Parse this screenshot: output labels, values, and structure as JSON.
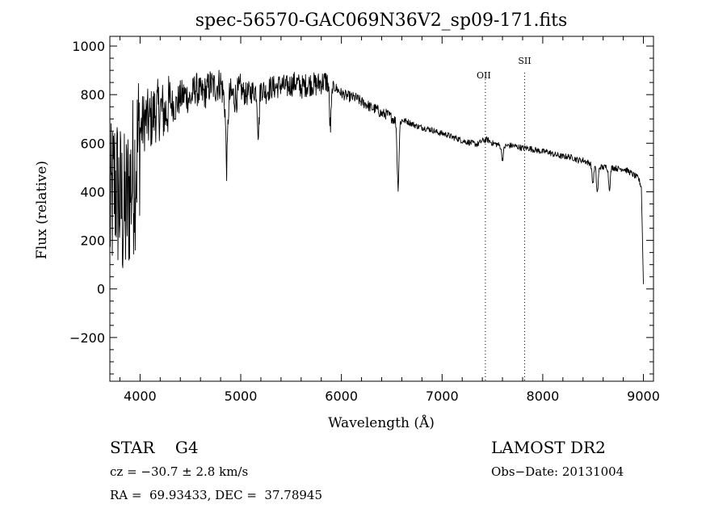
{
  "chart_data": {
    "type": "line",
    "title": "spec-56570-GAC069N36V2_sp09-171.fits",
    "xlabel": "Wavelength (Å)",
    "ylabel": "Flux (relative)",
    "xlim": [
      3700,
      9100
    ],
    "ylim": [
      -380,
      1040
    ],
    "xticks": [
      4000,
      5000,
      6000,
      7000,
      8000,
      9000
    ],
    "yticks": [
      -200,
      0,
      200,
      400,
      600,
      800,
      1000
    ],
    "xtick_labels": [
      "4000",
      "5000",
      "6000",
      "7000",
      "8000",
      "9000"
    ],
    "ytick_labels": [
      "−200",
      "0",
      "200",
      "400",
      "600",
      "800",
      "1000"
    ],
    "x_minor_step": 200,
    "y_minor_step": 50,
    "grid": false,
    "series": [
      {
        "x": [
          3700,
          3750,
          3800,
          3850,
          3900,
          3950,
          4000,
          4050,
          4100,
          4150,
          4200,
          4250,
          4300,
          4350,
          4400,
          4450,
          4500,
          4550,
          4600,
          4650,
          4700,
          4750,
          4800,
          4850,
          4900,
          4950,
          5000,
          5050,
          5100,
          5150,
          5200,
          5250,
          5300,
          5350,
          5400,
          5450,
          5500,
          5550,
          5600,
          5650,
          5700,
          5750,
          5800,
          5850,
          5900,
          5950,
          6000,
          6050,
          6100,
          6150,
          6200,
          6250,
          6300,
          6350,
          6400,
          6450,
          6500,
          6550,
          6600,
          6650,
          6700,
          6750,
          6800,
          6850,
          6900,
          6950,
          7000,
          7050,
          7100,
          7150,
          7200,
          7250,
          7300,
          7350,
          7400,
          7450,
          7500,
          7550,
          7600,
          7650,
          7700,
          7750,
          7800,
          7850,
          7900,
          7950,
          8000,
          8050,
          8100,
          8150,
          8200,
          8250,
          8300,
          8350,
          8400,
          8450,
          8500,
          8550,
          8600,
          8650,
          8700,
          8750,
          8800,
          8850,
          8900,
          8950,
          8980,
          9000
        ],
        "y": [
          300,
          440,
          360,
          300,
          420,
          500,
          650,
          700,
          690,
          730,
          740,
          720,
          770,
          750,
          790,
          800,
          780,
          830,
          800,
          810,
          840,
          830,
          850,
          760,
          800,
          790,
          820,
          800,
          810,
          820,
          830,
          810,
          830,
          830,
          840,
          830,
          840,
          850,
          830,
          840,
          845,
          840,
          850,
          855,
          840,
          825,
          805,
          795,
          790,
          785,
          770,
          760,
          745,
          740,
          720,
          720,
          705,
          690,
          695,
          690,
          680,
          670,
          665,
          660,
          655,
          645,
          640,
          635,
          625,
          620,
          610,
          605,
          600,
          595,
          610,
          615,
          600,
          595,
          585,
          590,
          590,
          585,
          580,
          580,
          575,
          570,
          565,
          565,
          555,
          550,
          545,
          545,
          540,
          530,
          530,
          520,
          515,
          505,
          500,
          505,
          500,
          495,
          495,
          485,
          470,
          455,
          420,
          20
        ]
      }
    ],
    "annotations": [
      {
        "label": "OII",
        "x": 7430
      },
      {
        "label": "SII",
        "x": 7820
      }
    ],
    "legend": "none"
  },
  "info": {
    "object_class": "STAR    G4",
    "survey": "LAMOST DR2",
    "redshift": "cz = −30.7 ± 2.8 km/s",
    "obs_date": "Obs−Date: 20131004",
    "coords": "RA =  69.93433, DEC =  37.78945"
  }
}
